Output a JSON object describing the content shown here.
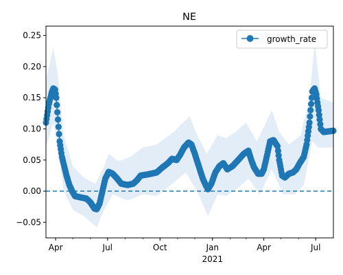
{
  "chart_data": {
    "type": "line",
    "title": "NE",
    "xlabel": "",
    "ylabel": "",
    "x_start": "2020-03-15",
    "x_end": "2021-08-01",
    "ylim": [
      -0.075,
      0.265
    ],
    "y_ticks": [
      -0.05,
      0.0,
      0.05,
      0.1,
      0.15,
      0.2,
      0.25
    ],
    "y_tick_labels": [
      "−0.05",
      "0.00",
      "0.05",
      "0.10",
      "0.15",
      "0.20",
      "0.25"
    ],
    "x_ticks": [
      {
        "date": "2020-04-01",
        "label": "Apr"
      },
      {
        "date": "2020-07-01",
        "label": "Jul"
      },
      {
        "date": "2020-10-01",
        "label": "Oct"
      },
      {
        "date": "2021-01-01",
        "label": "Jan"
      },
      {
        "date": "2021-04-01",
        "label": "Apr"
      },
      {
        "date": "2021-07-01",
        "label": "Jul"
      }
    ],
    "x_year_label": {
      "date": "2021-01-01",
      "label": "2021"
    },
    "minor_ticks_monthly": true,
    "reference_line": {
      "y": 0.0,
      "style": "dashed",
      "color": "#1f77b4"
    },
    "legend": {
      "position": "top-right",
      "entries": [
        "growth_rate"
      ]
    },
    "colors": {
      "line": "#1f77b4",
      "band": "#dce9f5"
    },
    "series": [
      {
        "name": "growth_rate",
        "marker": "circle",
        "points": [
          [
            "2020-03-15",
            0.11
          ],
          [
            "2020-03-20",
            0.14
          ],
          [
            "2020-03-25",
            0.158
          ],
          [
            "2020-03-28",
            0.165
          ],
          [
            "2020-03-31",
            0.163
          ],
          [
            "2020-04-02",
            0.15
          ],
          [
            "2020-04-05",
            0.115
          ],
          [
            "2020-04-08",
            0.08
          ],
          [
            "2020-04-12",
            0.055
          ],
          [
            "2020-04-16",
            0.04
          ],
          [
            "2020-04-20",
            0.025
          ],
          [
            "2020-04-25",
            0.01
          ],
          [
            "2020-04-30",
            0.0
          ],
          [
            "2020-05-05",
            -0.008
          ],
          [
            "2020-05-15",
            -0.01
          ],
          [
            "2020-05-25",
            -0.012
          ],
          [
            "2020-06-01",
            -0.018
          ],
          [
            "2020-06-08",
            -0.028
          ],
          [
            "2020-06-12",
            -0.029
          ],
          [
            "2020-06-17",
            -0.02
          ],
          [
            "2020-06-22",
            0.0
          ],
          [
            "2020-06-27",
            0.02
          ],
          [
            "2020-07-03",
            0.031
          ],
          [
            "2020-07-10",
            0.028
          ],
          [
            "2020-07-18",
            0.02
          ],
          [
            "2020-07-25",
            0.012
          ],
          [
            "2020-08-05",
            0.01
          ],
          [
            "2020-08-15",
            0.012
          ],
          [
            "2020-08-22",
            0.018
          ],
          [
            "2020-08-28",
            0.025
          ],
          [
            "2020-09-10",
            0.027
          ],
          [
            "2020-09-25",
            0.03
          ],
          [
            "2020-10-05",
            0.038
          ],
          [
            "2020-10-15",
            0.045
          ],
          [
            "2020-10-22",
            0.052
          ],
          [
            "2020-10-30",
            0.05
          ],
          [
            "2020-11-05",
            0.058
          ],
          [
            "2020-11-12",
            0.07
          ],
          [
            "2020-11-20",
            0.078
          ],
          [
            "2020-11-25",
            0.075
          ],
          [
            "2020-12-01",
            0.06
          ],
          [
            "2020-12-08",
            0.04
          ],
          [
            "2020-12-15",
            0.02
          ],
          [
            "2020-12-20",
            0.01
          ],
          [
            "2020-12-24",
            0.003
          ],
          [
            "2020-12-30",
            0.012
          ],
          [
            "2021-01-06",
            0.03
          ],
          [
            "2021-01-13",
            0.04
          ],
          [
            "2021-01-20",
            0.045
          ],
          [
            "2021-01-27",
            0.035
          ],
          [
            "2021-02-05",
            0.04
          ],
          [
            "2021-02-15",
            0.05
          ],
          [
            "2021-02-25",
            0.06
          ],
          [
            "2021-03-05",
            0.065
          ],
          [
            "2021-03-10",
            0.05
          ],
          [
            "2021-03-15",
            0.038
          ],
          [
            "2021-03-22",
            0.028
          ],
          [
            "2021-03-28",
            0.028
          ],
          [
            "2021-04-01",
            0.035
          ],
          [
            "2021-04-06",
            0.055
          ],
          [
            "2021-04-12",
            0.08
          ],
          [
            "2021-04-18",
            0.082
          ],
          [
            "2021-04-25",
            0.072
          ],
          [
            "2021-04-28",
            0.05
          ],
          [
            "2021-05-03",
            0.025
          ],
          [
            "2021-05-08",
            0.022
          ],
          [
            "2021-05-15",
            0.028
          ],
          [
            "2021-05-22",
            0.03
          ],
          [
            "2021-05-28",
            0.035
          ],
          [
            "2021-06-03",
            0.045
          ],
          [
            "2021-06-10",
            0.055
          ],
          [
            "2021-06-15",
            0.075
          ],
          [
            "2021-06-20",
            0.11
          ],
          [
            "2021-06-25",
            0.16
          ],
          [
            "2021-06-29",
            0.165
          ],
          [
            "2021-07-02",
            0.155
          ],
          [
            "2021-07-06",
            0.13
          ],
          [
            "2021-07-10",
            0.1
          ],
          [
            "2021-07-15",
            0.095
          ],
          [
            "2021-08-01",
            0.097
          ]
        ],
        "upper": [
          [
            "2020-03-15",
            0.18
          ],
          [
            "2020-03-28",
            0.23
          ],
          [
            "2020-04-05",
            0.185
          ],
          [
            "2020-04-15",
            0.09
          ],
          [
            "2020-05-01",
            0.04
          ],
          [
            "2020-05-20",
            0.022
          ],
          [
            "2020-06-10",
            0.012
          ],
          [
            "2020-06-25",
            0.04
          ],
          [
            "2020-07-03",
            0.06
          ],
          [
            "2020-07-20",
            0.048
          ],
          [
            "2020-08-10",
            0.055
          ],
          [
            "2020-09-01",
            0.07
          ],
          [
            "2020-09-25",
            0.075
          ],
          [
            "2020-10-10",
            0.085
          ],
          [
            "2020-10-25",
            0.095
          ],
          [
            "2020-11-10",
            0.11
          ],
          [
            "2020-11-22",
            0.12
          ],
          [
            "2020-12-05",
            0.09
          ],
          [
            "2020-12-22",
            0.06
          ],
          [
            "2021-01-10",
            0.09
          ],
          [
            "2021-01-25",
            0.085
          ],
          [
            "2021-02-10",
            0.095
          ],
          [
            "2021-03-01",
            0.11
          ],
          [
            "2021-03-20",
            0.08
          ],
          [
            "2021-04-15",
            0.13
          ],
          [
            "2021-04-28",
            0.095
          ],
          [
            "2021-05-15",
            0.075
          ],
          [
            "2021-06-05",
            0.09
          ],
          [
            "2021-06-20",
            0.15
          ],
          [
            "2021-06-29",
            0.24
          ],
          [
            "2021-07-10",
            0.15
          ],
          [
            "2021-08-01",
            0.142
          ]
        ],
        "lower": [
          [
            "2020-03-15",
            0.07
          ],
          [
            "2020-03-28",
            0.11
          ],
          [
            "2020-04-05",
            0.07
          ],
          [
            "2020-04-15",
            0.0
          ],
          [
            "2020-05-01",
            -0.03
          ],
          [
            "2020-05-20",
            -0.04
          ],
          [
            "2020-06-12",
            -0.058
          ],
          [
            "2020-06-25",
            -0.03
          ],
          [
            "2020-07-10",
            -0.005
          ],
          [
            "2020-08-05",
            -0.015
          ],
          [
            "2020-09-01",
            -0.005
          ],
          [
            "2020-09-25",
            -0.008
          ],
          [
            "2020-10-20",
            0.01
          ],
          [
            "2020-11-15",
            0.03
          ],
          [
            "2020-12-05",
            0.0
          ],
          [
            "2020-12-24",
            -0.04
          ],
          [
            "2021-01-10",
            -0.005
          ],
          [
            "2021-01-25",
            -0.008
          ],
          [
            "2021-02-15",
            0.005
          ],
          [
            "2021-03-05",
            0.02
          ],
          [
            "2021-03-25",
            -0.005
          ],
          [
            "2021-04-15",
            0.035
          ],
          [
            "2021-05-05",
            -0.005
          ],
          [
            "2021-05-25",
            -0.005
          ],
          [
            "2021-06-10",
            0.01
          ],
          [
            "2021-06-25",
            0.08
          ],
          [
            "2021-07-05",
            0.07
          ],
          [
            "2021-08-01",
            0.07
          ]
        ]
      }
    ]
  }
}
